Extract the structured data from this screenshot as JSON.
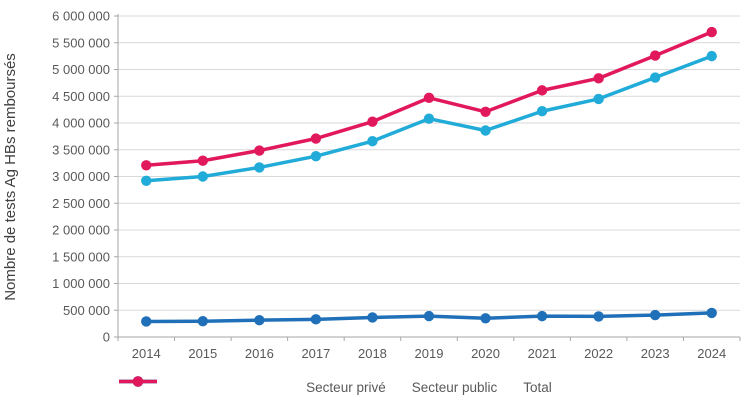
{
  "chart_data": {
    "type": "line",
    "title": "",
    "xlabel": "",
    "ylabel": "Nombre de tests Ag HBs remboursés",
    "x": [
      2014,
      2015,
      2016,
      2017,
      2018,
      2019,
      2020,
      2021,
      2022,
      2023,
      2024
    ],
    "ylim": [
      0,
      6000000
    ],
    "ytick_step": 500000,
    "ytick_labels": [
      "0",
      "500 000",
      "1 000 000",
      "1 500 000",
      "2 000 000",
      "2 500 000",
      "3 000 000",
      "3 500 000",
      "4 000 000",
      "4 500 000",
      "5 000 000",
      "5 500 000",
      "6 000 000"
    ],
    "grid": true,
    "legend_position": "bottom-center",
    "series": [
      {
        "name": "Secteur privé",
        "color": "#21ABD8",
        "values": [
          2920000,
          3000000,
          3170000,
          3380000,
          3660000,
          4080000,
          3860000,
          4220000,
          4450000,
          4850000,
          5250000
        ]
      },
      {
        "name": "Secteur public",
        "color": "#1F70B8",
        "values": [
          290000,
          295000,
          315000,
          330000,
          365000,
          390000,
          350000,
          390000,
          385000,
          410000,
          450000
        ]
      },
      {
        "name": "Total",
        "color": "#E2185D",
        "values": [
          3210000,
          3295000,
          3485000,
          3710000,
          4025000,
          4470000,
          4210000,
          4610000,
          4835000,
          5260000,
          5700000
        ]
      }
    ]
  },
  "styles": {
    "axis_color": "#A6A6A6",
    "grid_color": "#D9D9D9",
    "tick_text_color": "#595959",
    "axis_title_color": "#404040",
    "background": "#FFFFFF"
  }
}
